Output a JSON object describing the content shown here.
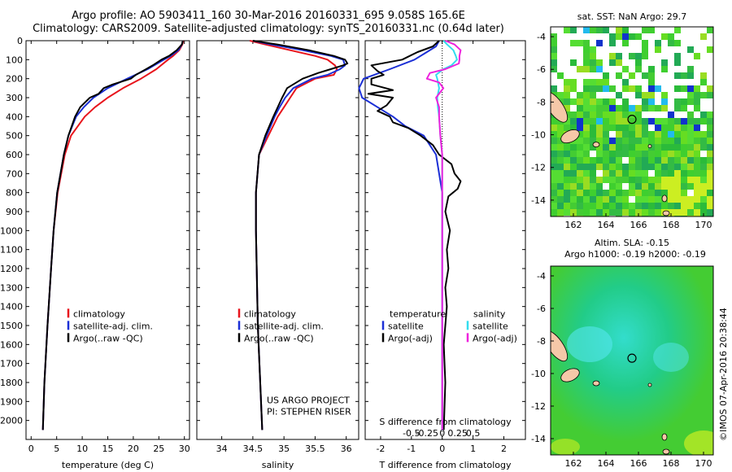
{
  "title_line1": "Argo profile: AO 5903411_160 30-Mar-2016 20160331_695 9.058S 165.6E",
  "title_line2": "Climatology: CARS2009. Satellite-adjusted climatology: synTS_20160331.nc (0.64d later)",
  "credit": "©IMOS 07-Apr-2016 20:38:44",
  "colors": {
    "climatology": "#e8141c",
    "satellite": "#1b2fd6",
    "argo": "#000000",
    "sat_salinity": "#33ddee",
    "argo_salinity": "#ee22dd"
  },
  "chart_data": [
    {
      "type": "line",
      "xlabel": "temperature (deg C)",
      "xlim": [
        -1,
        31
      ],
      "xticks": [
        0,
        5,
        10,
        15,
        20,
        25,
        30
      ],
      "ylim": [
        2100,
        0
      ],
      "yticks": [
        0,
        100,
        200,
        300,
        400,
        500,
        600,
        700,
        800,
        900,
        1000,
        1100,
        1200,
        1300,
        1400,
        1500,
        1600,
        1700,
        1800,
        1900,
        2000
      ],
      "legend": [
        "climatology",
        "satellite-adj. clim.",
        "Argo(..raw -QC)"
      ],
      "series": [
        {
          "name": "climatology",
          "depth": [
            0,
            20,
            50,
            80,
            100,
            150,
            200,
            250,
            300,
            350,
            400,
            500,
            600,
            800,
            1000,
            1200,
            1500,
            1800,
            2050
          ],
          "values": [
            29.8,
            29.6,
            29,
            27.8,
            26.8,
            24.5,
            21.5,
            18,
            15,
            12.5,
            10.5,
            7.8,
            6.6,
            5.2,
            4.4,
            3.9,
            3.2,
            2.6,
            2.3
          ]
        },
        {
          "name": "satellite-adj. clim.",
          "depth": [
            0,
            20,
            50,
            80,
            100,
            150,
            200,
            250,
            300,
            350,
            400,
            500,
            600,
            800,
            1000,
            1200,
            1500,
            1800,
            2050
          ],
          "values": [
            29.7,
            29.5,
            28.8,
            27.3,
            26,
            22.8,
            18.8,
            15,
            12.2,
            10.3,
            8.8,
            7.3,
            6.4,
            5.1,
            4.4,
            3.9,
            3.2,
            2.6,
            2.3
          ]
        },
        {
          "name": "Argo(..raw -QC)",
          "depth": [
            0,
            20,
            50,
            80,
            100,
            130,
            150,
            180,
            200,
            230,
            250,
            280,
            300,
            350,
            400,
            500,
            600,
            800,
            1000,
            1200,
            1500,
            1800,
            2050
          ],
          "values": [
            29.7,
            29.5,
            28.5,
            27,
            25.5,
            23.8,
            22.5,
            20.5,
            19.5,
            16,
            14.2,
            13.2,
            11.5,
            9.6,
            8.6,
            7.3,
            6.4,
            5.1,
            4.4,
            3.9,
            3.2,
            2.6,
            2.3
          ]
        }
      ]
    },
    {
      "type": "line",
      "xlabel": "salinity",
      "xlim": [
        33.6,
        36.2
      ],
      "xticks": [
        34,
        34.5,
        35,
        35.5,
        36
      ],
      "ylim": [
        2100,
        0
      ],
      "legend": [
        "climatology",
        "satellite-adj. clim.",
        "Argo(..raw -QC)"
      ],
      "notes": [
        "US ARGO PROJECT",
        "PI: STEPHEN RISER"
      ],
      "series": [
        {
          "name": "climatology",
          "depth": [
            0,
            20,
            50,
            80,
            100,
            130,
            150,
            180,
            200,
            250,
            300,
            350,
            400,
            500,
            600,
            800,
            1000,
            1500,
            2050
          ],
          "values": [
            34.45,
            34.7,
            35.1,
            35.5,
            35.7,
            35.82,
            35.85,
            35.8,
            35.5,
            35.2,
            35.1,
            35,
            34.9,
            34.75,
            34.6,
            34.55,
            34.55,
            34.58,
            34.65
          ]
        },
        {
          "name": "satellite-adj. clim.",
          "depth": [
            0,
            20,
            50,
            80,
            100,
            130,
            150,
            180,
            200,
            250,
            300,
            350,
            400,
            500,
            600,
            800,
            1000,
            1500,
            2050
          ],
          "values": [
            34.5,
            34.8,
            35.3,
            35.75,
            35.95,
            35.98,
            35.9,
            35.7,
            35.45,
            35.15,
            35.02,
            34.93,
            34.85,
            34.72,
            34.6,
            34.55,
            34.55,
            34.58,
            34.65
          ]
        },
        {
          "name": "Argo(..raw -QC)",
          "depth": [
            0,
            20,
            50,
            80,
            100,
            120,
            130,
            150,
            170,
            200,
            220,
            250,
            300,
            350,
            400,
            500,
            600,
            800,
            1000,
            1500,
            2050
          ],
          "values": [
            34.5,
            34.9,
            35.4,
            35.8,
            35.98,
            36.02,
            35.95,
            35.75,
            35.55,
            35.3,
            35.2,
            35.05,
            34.97,
            34.9,
            34.83,
            34.7,
            34.6,
            34.55,
            34.55,
            34.58,
            34.65
          ]
        }
      ]
    },
    {
      "type": "line",
      "xlabel": "T difference from climatology",
      "xlabel2": "S difference from climatology",
      "xlim": [
        -2.5,
        2.7
      ],
      "xticks": [
        -2,
        -1,
        0,
        1,
        2
      ],
      "xticks2": [
        -0.5,
        -0.25,
        0,
        0.25,
        0.5
      ],
      "ylim": [
        2100,
        0
      ],
      "legend_headers": [
        "temperature",
        "salinity"
      ],
      "legend": [
        "satellite",
        "Argo(-adj)",
        "satellite",
        "Argo(-adj)"
      ],
      "series": [
        {
          "name": "satellite",
          "group": "temperature",
          "depth": [
            0,
            30,
            60,
            100,
            150,
            200,
            250,
            300,
            350,
            400,
            450,
            500,
            600,
            800,
            1000,
            1500,
            2050
          ],
          "values": [
            -0.1,
            -0.2,
            -0.5,
            -0.9,
            -1.7,
            -2.55,
            -2.7,
            -2.6,
            -2.1,
            -1.6,
            -1.2,
            -0.6,
            -0.2,
            0,
            0,
            0,
            0
          ]
        },
        {
          "name": "Argo(-adj)",
          "group": "temperature",
          "depth": [
            0,
            30,
            60,
            100,
            130,
            160,
            180,
            200,
            230,
            260,
            280,
            300,
            340,
            370,
            400,
            430,
            460,
            500,
            550,
            600,
            650,
            700,
            740,
            780,
            820,
            900,
            1000,
            1100,
            1200,
            1300,
            1400,
            1500,
            1600,
            1800,
            2050
          ],
          "values": [
            -0.1,
            -0.3,
            -0.8,
            -1.3,
            -2.3,
            -2.1,
            -1.9,
            -2.3,
            -2.3,
            -1.6,
            -2.4,
            -1.6,
            -1.8,
            -2.1,
            -1.7,
            -1.6,
            -1.1,
            -0.7,
            -0.3,
            -0.1,
            0.3,
            0.4,
            0.6,
            0.5,
            0.2,
            0.1,
            0.25,
            0.15,
            0.2,
            0.1,
            0.15,
            0.1,
            0.05,
            0.1,
            0.05
          ]
        },
        {
          "name": "satellite",
          "group": "salinity",
          "depth": [
            0,
            20,
            50,
            80,
            100,
            130,
            150,
            180,
            200,
            250,
            300,
            350,
            400,
            500,
            600,
            800,
            1000,
            1500,
            2050
          ],
          "values": [
            0.02,
            0.08,
            0.18,
            0.22,
            0.24,
            0.15,
            0.02,
            -0.1,
            -0.08,
            -0.05,
            -0.08,
            -0.07,
            -0.05,
            -0.03,
            0,
            0,
            0,
            0,
            0
          ]
        },
        {
          "name": "Argo(-adj)",
          "group": "salinity",
          "depth": [
            0,
            20,
            50,
            80,
            100,
            120,
            150,
            170,
            200,
            220,
            250,
            300,
            350,
            400,
            500,
            600,
            800,
            1000,
            1500,
            2050
          ],
          "values": [
            0.05,
            0.2,
            0.3,
            0.28,
            0.28,
            0.27,
            0.05,
            -0.2,
            -0.25,
            -0.05,
            0.02,
            -0.1,
            -0.05,
            -0.05,
            -0.03,
            0,
            0,
            0,
            0,
            0
          ]
        }
      ]
    },
    {
      "type": "heatmap",
      "title": "sat. SST: NaN  Argo: 29.7",
      "xticks": [
        162,
        164,
        166,
        168,
        170
      ],
      "yticks": [
        -4,
        -6,
        -8,
        -10,
        -12,
        -14
      ],
      "xlim": [
        160.6,
        170.6
      ],
      "ylim": [
        -15,
        -3.4
      ],
      "argo_position": {
        "lon": 165.6,
        "lat": -9.058
      }
    },
    {
      "type": "heatmap",
      "title": "Altim. SLA: -0.15",
      "subtitle": "Argo h1000: -0.19  h2000: -0.19",
      "xticks": [
        162,
        164,
        166,
        168,
        170
      ],
      "yticks": [
        -4,
        -6,
        -8,
        -10,
        -12,
        -14
      ],
      "xlim": [
        160.6,
        170.6
      ],
      "ylim": [
        -15,
        -3.4
      ],
      "argo_position": {
        "lon": 165.6,
        "lat": -9.058
      }
    }
  ]
}
